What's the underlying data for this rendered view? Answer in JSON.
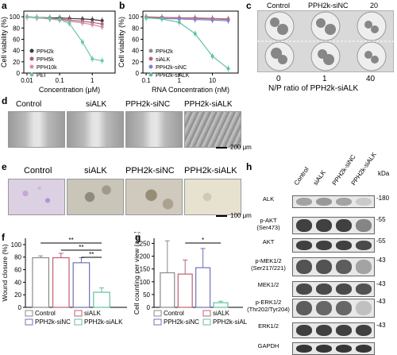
{
  "panels": {
    "a": {
      "label": "a",
      "ylabel": "Cell viability (%)",
      "xlabel": "Concentration (μM)",
      "yticks": [
        "0",
        "20",
        "40",
        "60",
        "80",
        "100"
      ],
      "xticks": [
        "0.01",
        "0.1",
        "1"
      ],
      "legend": [
        "PPH2k",
        "PPH5k",
        "PPH10k",
        "PEI"
      ],
      "colors": [
        "#3a3a3a",
        "#b05a6a",
        "#d090a8",
        "#6cc9a8"
      ]
    },
    "b": {
      "label": "b",
      "ylabel": "Cell viability (%)",
      "xlabel": "RNA Concentration (nM)",
      "yticks": [
        "0",
        "20",
        "40",
        "60",
        "80",
        "100"
      ],
      "xticks": [
        "0.1",
        "1",
        "10"
      ],
      "legend": [
        "PPH2k",
        "siALK",
        "PPH2k-siNC",
        "PPH2k-siALK"
      ],
      "colors": [
        "#8c8c8c",
        "#c06070",
        "#8080d0",
        "#60c0a0"
      ]
    },
    "c": {
      "label": "c",
      "top_labels": [
        "Control",
        "PPH2k-siNC",
        "20"
      ],
      "bottom_ticks": [
        "0",
        "1",
        "40"
      ],
      "xlabel": "N/P ratio of PPH2k-siALK"
    },
    "d": {
      "label": "d",
      "titles": [
        "Control",
        "siALK",
        "PPH2k-siNC",
        "PPH2k-siALK"
      ],
      "scalebar": "200 μm"
    },
    "e": {
      "label": "e",
      "titles": [
        "Control",
        "siALK",
        "PPH2k-siNC",
        "PPH2k-siALK"
      ],
      "scalebar": "100 μm"
    },
    "f": {
      "label": "f",
      "ylabel": "Wound closure (%)",
      "yticks": [
        "0",
        "20",
        "40",
        "60",
        "80",
        "100"
      ],
      "legend": [
        "Control",
        "siALK",
        "PPH2k-siNC",
        "PPH2k-siALK"
      ],
      "sig": [
        "**",
        "**",
        "**"
      ],
      "colors": [
        "#8a8a8a",
        "#c06070",
        "#7070b8",
        "#60c0a0"
      ]
    },
    "g": {
      "label": "g",
      "ylabel": "Cell counting per view (a.u.)",
      "yticks": [
        "0",
        "50",
        "100",
        "150",
        "200",
        "250"
      ],
      "legend": [
        "Control",
        "siALK",
        "PPH2k-siNC",
        "PPH2k-siALK"
      ],
      "sig": [
        "*"
      ],
      "colors": [
        "#8a8a8a",
        "#c06070",
        "#7070b8",
        "#60c0a0"
      ]
    },
    "h": {
      "label": "h",
      "lanes": [
        "Control",
        "siALK",
        "PPH2k-siNC",
        "PPH2k-siALK"
      ],
      "kda": "kDa",
      "rows": [
        {
          "name": "ALK",
          "mw": "180",
          "int": [
            0.35,
            0.4,
            0.35,
            0.15
          ]
        },
        {
          "name": "p-AKT\n(Ser473)",
          "mw": "55",
          "int": [
            0.85,
            0.85,
            0.85,
            0.5
          ]
        },
        {
          "name": "AKT",
          "mw": "55",
          "int": [
            0.85,
            0.85,
            0.85,
            0.8
          ]
        },
        {
          "name": "p-MEK1/2\n(Ser217/221)",
          "mw": "43",
          "int": [
            0.75,
            0.75,
            0.7,
            0.35
          ]
        },
        {
          "name": "MEK1/2",
          "mw": "43",
          "int": [
            0.8,
            0.8,
            0.8,
            0.75
          ]
        },
        {
          "name": "p-ERK1/2\n(Thr202/Tyr204)",
          "mw": "43",
          "int": [
            0.7,
            0.65,
            0.65,
            0.2
          ]
        },
        {
          "name": "ERK1/2",
          "mw": "43",
          "int": [
            0.85,
            0.85,
            0.85,
            0.85
          ]
        },
        {
          "name": "GAPDH",
          "mw": "",
          "int": [
            0.9,
            0.9,
            0.9,
            0.9
          ]
        }
      ]
    }
  },
  "chart_data": [
    {
      "type": "line",
      "panel": "a",
      "xlabel": "Concentration (μM)",
      "ylabel": "Cell viability (%)",
      "xscale": "log",
      "xlim": [
        0.008,
        5
      ],
      "ylim": [
        0,
        110
      ],
      "series": [
        {
          "name": "PPH2k",
          "x": [
            0.01,
            0.02,
            0.05,
            0.1,
            0.2,
            0.5,
            1,
            2
          ],
          "y": [
            100,
            99,
            98,
            98,
            97,
            96,
            95,
            93
          ]
        },
        {
          "name": "PPH5k",
          "x": [
            0.01,
            0.02,
            0.05,
            0.1,
            0.2,
            0.5,
            1,
            2
          ],
          "y": [
            100,
            98,
            97,
            96,
            94,
            92,
            90,
            87
          ]
        },
        {
          "name": "PPH10k",
          "x": [
            0.01,
            0.02,
            0.05,
            0.1,
            0.2,
            0.5,
            1,
            2
          ],
          "y": [
            99,
            98,
            96,
            94,
            92,
            89,
            86,
            82
          ]
        },
        {
          "name": "PEI",
          "x": [
            0.01,
            0.02,
            0.05,
            0.1,
            0.2,
            0.5,
            1,
            2
          ],
          "y": [
            100,
            99,
            97,
            95,
            88,
            55,
            25,
            22
          ]
        }
      ]
    },
    {
      "type": "line",
      "panel": "b",
      "xlabel": "RNA Concentration (nM)",
      "ylabel": "Cell viability (%)",
      "xscale": "log",
      "xlim": [
        0.08,
        60
      ],
      "ylim": [
        0,
        110
      ],
      "series": [
        {
          "name": "PPH2k",
          "x": [
            0.1,
            0.3,
            1,
            3,
            10,
            30
          ],
          "y": [
            100,
            99,
            98,
            97,
            96,
            95
          ]
        },
        {
          "name": "siALK",
          "x": [
            0.1,
            0.3,
            1,
            3,
            10,
            30
          ],
          "y": [
            99,
            99,
            98,
            98,
            97,
            96
          ]
        },
        {
          "name": "PPH2k-siNC",
          "x": [
            0.1,
            0.3,
            1,
            3,
            10,
            30
          ],
          "y": [
            98,
            97,
            96,
            95,
            94,
            93
          ]
        },
        {
          "name": "PPH2k-siALK",
          "x": [
            0.1,
            0.3,
            1,
            3,
            10,
            30
          ],
          "y": [
            98,
            96,
            90,
            70,
            30,
            8
          ]
        }
      ]
    },
    {
      "type": "bar",
      "panel": "f",
      "ylabel": "Wound closure (%)",
      "ylim": [
        0,
        110
      ],
      "categories": [
        "Control",
        "siALK",
        "PPH2k-siNC",
        "PPH2k-siALK"
      ],
      "values": [
        79,
        79,
        71,
        24
      ],
      "errors": [
        3,
        7,
        8,
        7
      ]
    },
    {
      "type": "bar",
      "panel": "g",
      "ylabel": "Cell counting per view (a.u.)",
      "ylim": [
        0,
        270
      ],
      "categories": [
        "Control",
        "siALK",
        "PPH2k-siNC",
        "PPH2k-siALK"
      ],
      "values": [
        135,
        130,
        155,
        18
      ],
      "errors": [
        125,
        55,
        75,
        6
      ]
    }
  ]
}
